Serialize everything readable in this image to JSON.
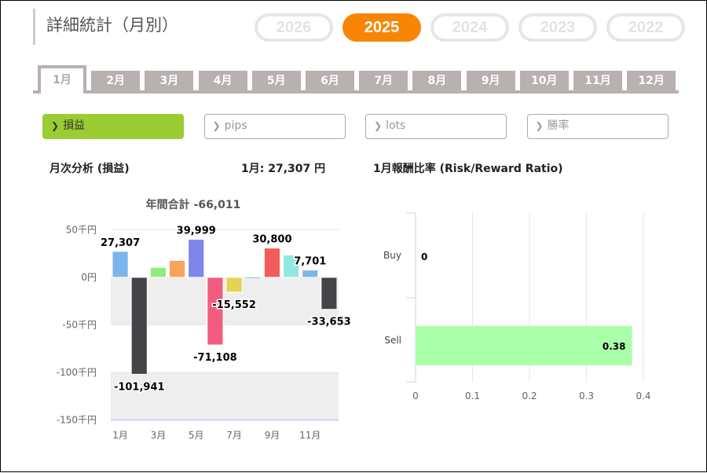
{
  "title": "詳細統計（月別）",
  "years": [
    {
      "label": "2026",
      "active": false
    },
    {
      "label": "2025",
      "active": true
    },
    {
      "label": "2024",
      "active": false
    },
    {
      "label": "2023",
      "active": false
    },
    {
      "label": "2022",
      "active": false
    }
  ],
  "months": [
    "1月",
    "2月",
    "3月",
    "4月",
    "5月",
    "6月",
    "7月",
    "8月",
    "9月",
    "10月",
    "11月",
    "12月"
  ],
  "filters": [
    {
      "label": "損益",
      "active": true
    },
    {
      "label": "pips",
      "active": false
    },
    {
      "label": "lots",
      "active": false
    },
    {
      "label": "勝率",
      "active": false
    }
  ],
  "left_heading": "月次分析 (損益)",
  "month_summary": "1月:  27,307 円",
  "right_heading": "1月報酬比率 (Risk/Reward Ratio)",
  "colors": {
    "accent": "#f98505",
    "green": "#9acd32"
  },
  "chart_data": [
    {
      "type": "bar",
      "title": "年間合計 -66,011",
      "categories": [
        "1月",
        "2月",
        "3月",
        "4月",
        "5月",
        "6月",
        "7月",
        "8月",
        "9月",
        "10月",
        "11月",
        "12月"
      ],
      "values": [
        27307,
        -101941,
        10500,
        17800,
        39999,
        -71108,
        -15552,
        -1364,
        30800,
        23500,
        7701,
        -33653
      ],
      "labels": [
        "27,307",
        "-101,941",
        "",
        "",
        "39,999",
        "-71,108",
        "-15,552",
        "",
        "30,800",
        "",
        "7,701",
        "-33,653"
      ],
      "colors": [
        "#7cb5ec",
        "#434348",
        "#90ed7d",
        "#f7a35c",
        "#8085e9",
        "#f15c80",
        "#e4d354",
        "#2b908f",
        "#f45b5b",
        "#91e8e1",
        "#7cb5ec",
        "#434348"
      ],
      "yticks": [
        {
          "v": 50000,
          "t": "50千円"
        },
        {
          "v": 0,
          "t": "0円"
        },
        {
          "v": -50000,
          "t": "-50千円"
        },
        {
          "v": -100000,
          "t": "-100千円"
        },
        {
          "v": -150000,
          "t": "-150千円"
        }
      ],
      "xticks": [
        "1月",
        "3月",
        "5月",
        "7月",
        "9月",
        "11月"
      ],
      "ylim": [
        -150000,
        50000
      ]
    },
    {
      "type": "bar",
      "orientation": "horizontal",
      "categories": [
        "Buy",
        "Sell"
      ],
      "values": [
        0,
        0.38
      ],
      "labels": [
        "0",
        "0.38"
      ],
      "xticks": [
        "0",
        "0.1",
        "0.2",
        "0.3",
        "0.4"
      ],
      "xlim": [
        0,
        0.4
      ],
      "color": "#aaffaa"
    }
  ]
}
